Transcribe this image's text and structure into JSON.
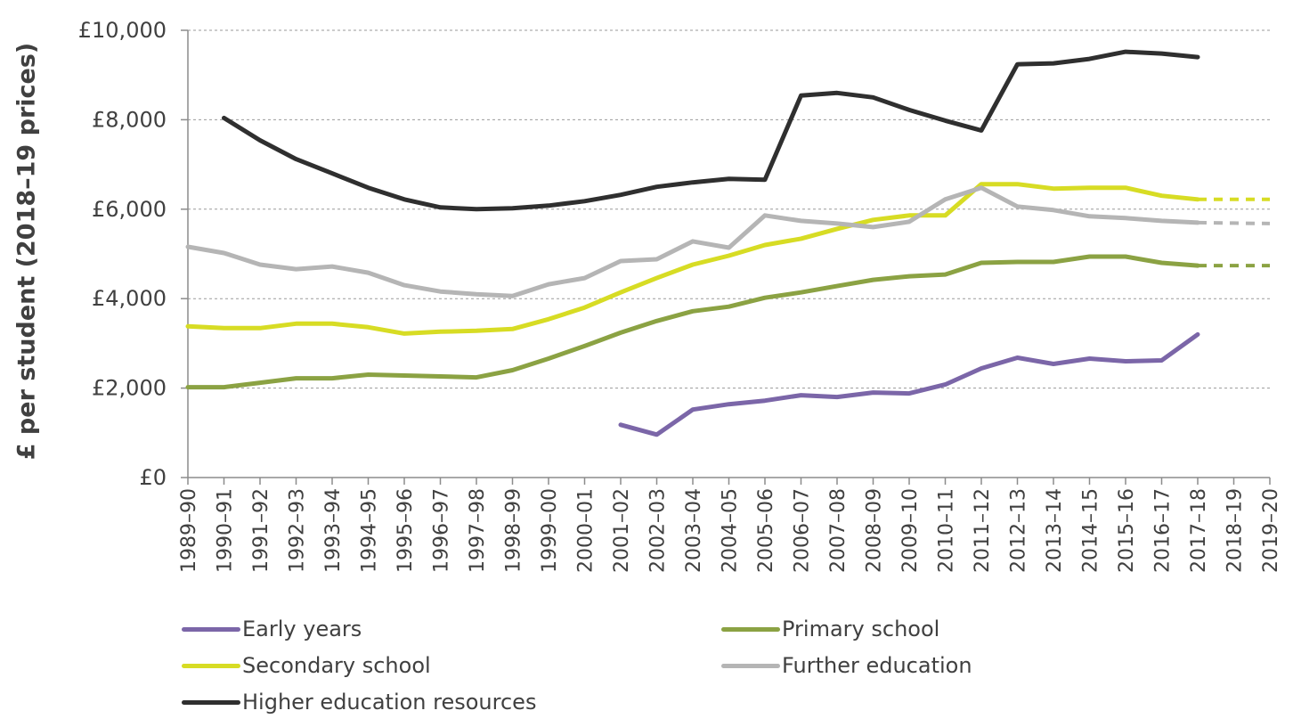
{
  "chart_data": {
    "type": "line",
    "ylabel": "£ per student (2018–19 prices)",
    "ylim": [
      0,
      10000
    ],
    "y_ticks": [
      "£0",
      "£2,000",
      "£4,000",
      "£6,000",
      "£8,000",
      "£10,000"
    ],
    "y_tick_values": [
      0,
      2000,
      4000,
      6000,
      8000,
      10000
    ],
    "grid": true,
    "legend_position": "bottom",
    "categories": [
      "1989–90",
      "1990–91",
      "1991–92",
      "1992–93",
      "1993–94",
      "1994–95",
      "1995–96",
      "1996–97",
      "1997–98",
      "1998–99",
      "1999–00",
      "2000–01",
      "2001–02",
      "2002–03",
      "2003–04",
      "2004–05",
      "2005–06",
      "2006–07",
      "2007–08",
      "2008–09",
      "2009–10",
      "2010–11",
      "2011–12",
      "2012–13",
      "2013–14",
      "2014–15",
      "2015–16",
      "2016–17",
      "2017–18",
      "2018–19",
      "2019–20"
    ],
    "series": [
      {
        "name": "Early years",
        "color": "#7b66a8",
        "values": [
          null,
          null,
          null,
          null,
          null,
          null,
          null,
          null,
          null,
          null,
          null,
          null,
          1180,
          960,
          1520,
          1640,
          1720,
          1840,
          1800,
          1900,
          1880,
          2080,
          2440,
          2680,
          2540,
          2660,
          2600,
          2620,
          3200,
          null,
          null
        ],
        "projection": []
      },
      {
        "name": "Primary school",
        "color": "#8ba243",
        "values": [
          2020,
          2020,
          2120,
          2220,
          2220,
          2300,
          2280,
          2260,
          2240,
          2400,
          2660,
          2940,
          3240,
          3500,
          3720,
          3820,
          4020,
          4140,
          4280,
          4420,
          4500,
          4540,
          4800,
          4820,
          4820,
          4940,
          4940,
          4800,
          4740,
          null,
          null
        ],
        "projection": [
          4740,
          4740,
          4740
        ]
      },
      {
        "name": "Secondary school",
        "color": "#d7dc24",
        "values": [
          3380,
          3340,
          3340,
          3440,
          3440,
          3360,
          3220,
          3260,
          3280,
          3320,
          3540,
          3800,
          4140,
          4460,
          4760,
          4960,
          5200,
          5340,
          5560,
          5760,
          5860,
          5860,
          6560,
          6560,
          6460,
          6480,
          6480,
          6300,
          6220,
          null,
          null
        ],
        "projection": [
          6220,
          6220,
          6220
        ]
      },
      {
        "name": "Further education",
        "color": "#b5b5b5",
        "values": [
          5160,
          5020,
          4760,
          4660,
          4720,
          4580,
          4300,
          4160,
          4100,
          4060,
          4320,
          4460,
          4840,
          4880,
          5280,
          5140,
          5860,
          5740,
          5680,
          5600,
          5720,
          6220,
          6480,
          6060,
          5980,
          5840,
          5800,
          5740,
          5700,
          null,
          null
        ],
        "projection": [
          5700,
          5690,
          5680
        ]
      },
      {
        "name": "Higher education resources",
        "color": "#2f2f2f",
        "values": [
          null,
          8040,
          7540,
          7120,
          6800,
          6480,
          6220,
          6040,
          6000,
          6020,
          6080,
          6180,
          6320,
          6500,
          6600,
          6680,
          6660,
          8540,
          8600,
          8500,
          8220,
          7980,
          7760,
          9240,
          9260,
          9360,
          9520,
          9480,
          9400,
          null,
          null
        ],
        "projection": []
      }
    ]
  }
}
